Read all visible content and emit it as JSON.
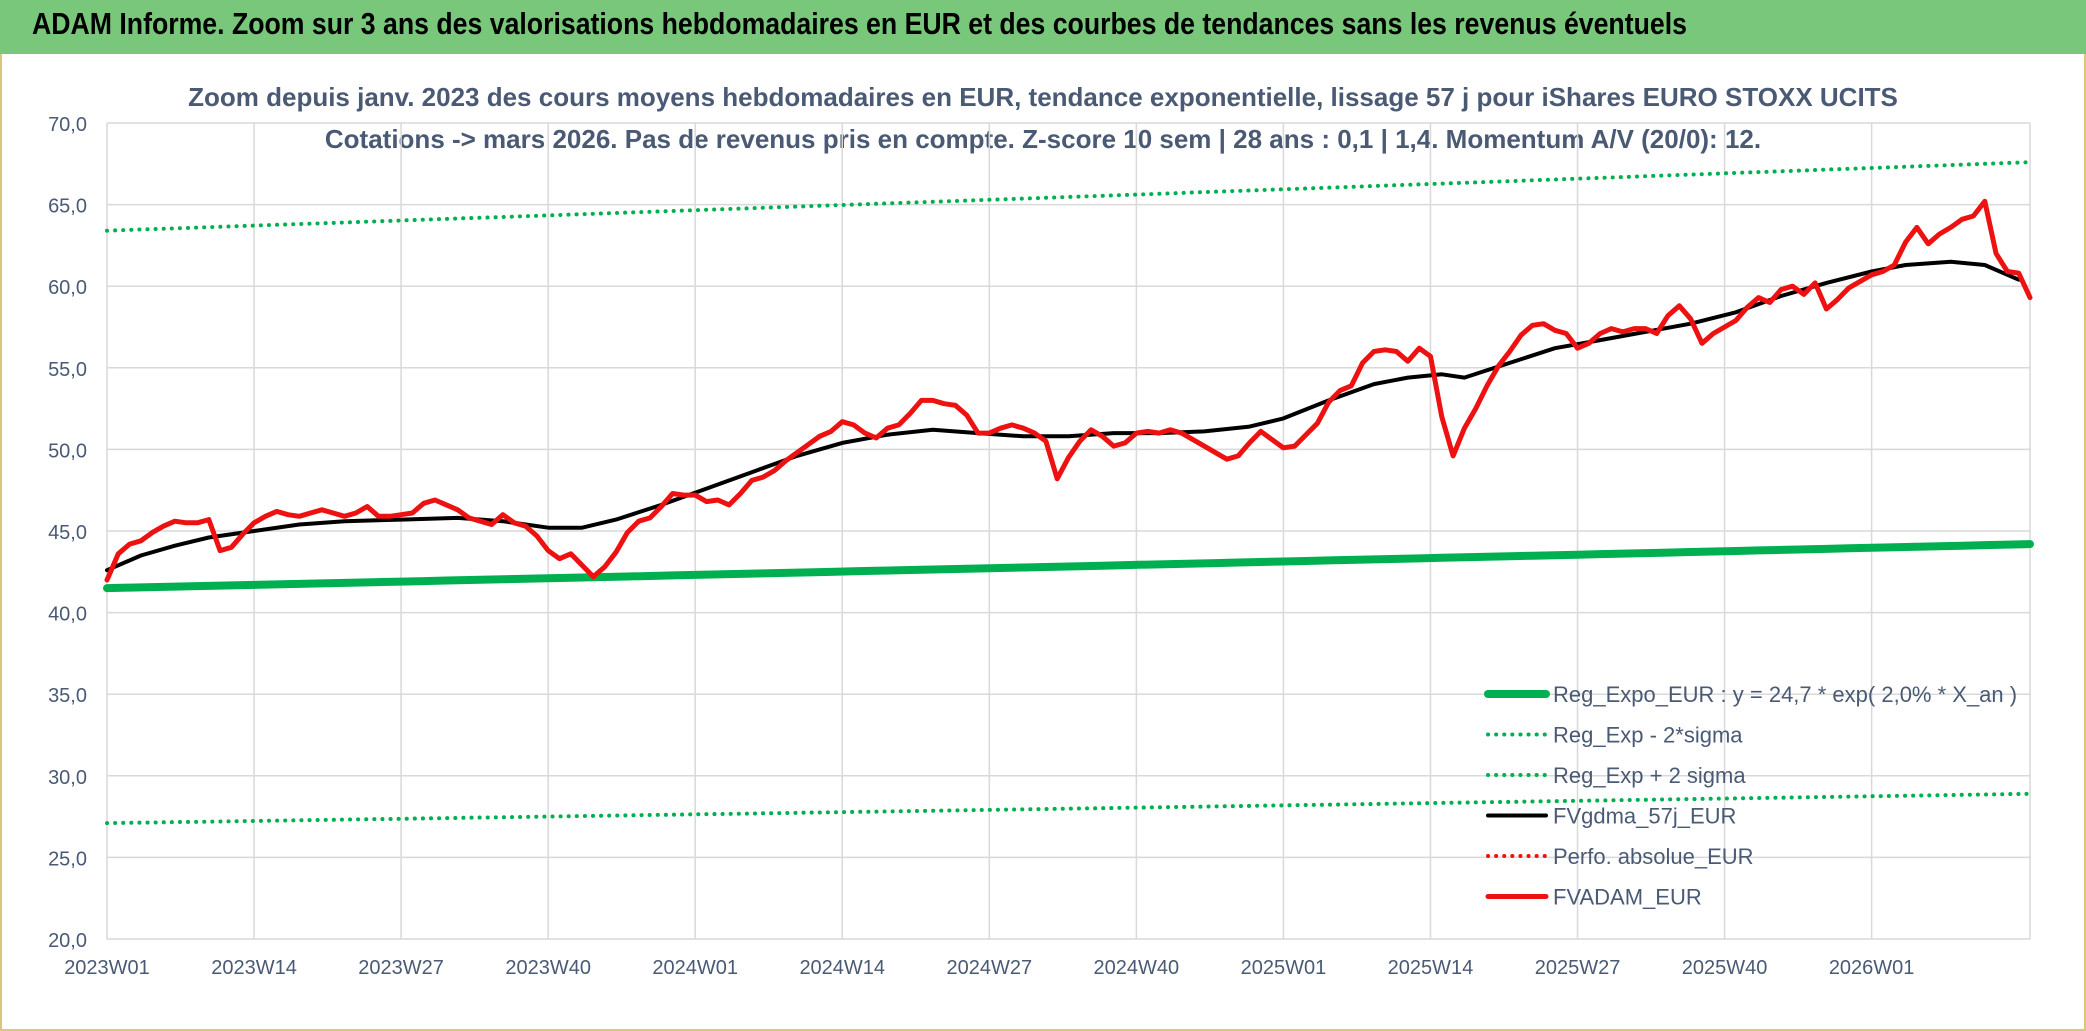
{
  "page": {
    "title": "ADAM Informe. Zoom sur 3 ans des valorisations hebdomadaires en EUR et des courbes de tendances sans les revenus éventuels"
  },
  "colors": {
    "header_bg": "#79c77a",
    "grid": "#d9d9d9",
    "axis_text": "#4a5a74",
    "green": "#00b050",
    "black": "#000000",
    "red": "#ee1111"
  },
  "chart_data": {
    "type": "line",
    "title": "Zoom depuis janv. 2023 des cours moyens hebdomadaires en EUR, tendance exponentielle, lissage 57 j pour iShares EURO STOXX UCITS",
    "subtitle": "Cotations -> mars 2026. Pas de revenus pris en compte. Z-score 10 sem | 28 ans : 0,1 | 1,4. Momentum A/V (20/0): 12.",
    "xlabel": "",
    "ylabel": "",
    "ylim": [
      20,
      70
    ],
    "y_ticks": [
      "20,0",
      "25,0",
      "30,0",
      "35,0",
      "40,0",
      "45,0",
      "50,0",
      "55,0",
      "60,0",
      "65,0",
      "70,0"
    ],
    "x_ticks": [
      {
        "label": "2023W01",
        "index": 0
      },
      {
        "label": "2023W14",
        "index": 13
      },
      {
        "label": "2023W27",
        "index": 26
      },
      {
        "label": "2023W40",
        "index": 39
      },
      {
        "label": "2024W01",
        "index": 52
      },
      {
        "label": "2024W14",
        "index": 65
      },
      {
        "label": "2024W27",
        "index": 78
      },
      {
        "label": "2024W40",
        "index": 91
      },
      {
        "label": "2025W01",
        "index": 104
      },
      {
        "label": "2025W14",
        "index": 117
      },
      {
        "label": "2025W27",
        "index": 130
      },
      {
        "label": "2025W40",
        "index": 143
      },
      {
        "label": "2026W01",
        "index": 156
      }
    ],
    "n_weeks": 170,
    "legend_position": "bottom-right",
    "series": [
      {
        "name": "Reg_Expo_EUR : y = 24,7 * exp( 2,0% *  X_an )",
        "style": "solid-thick",
        "color": "#00b050",
        "start": 41.5,
        "end": 44.2
      },
      {
        "name": "Reg_Exp - 2*sigma",
        "style": "dotted",
        "color": "#00b050",
        "start": 27.1,
        "end": 28.9
      },
      {
        "name": "Reg_Exp + 2 sigma",
        "style": "dotted",
        "color": "#00b050",
        "start": 63.4,
        "end": 67.6
      },
      {
        "name": "FVgdma_57j_EUR",
        "style": "solid",
        "color": "#000000",
        "points": [
          [
            0,
            42.6
          ],
          [
            3,
            43.5
          ],
          [
            6,
            44.1
          ],
          [
            9,
            44.6
          ],
          [
            13,
            45.0
          ],
          [
            17,
            45.4
          ],
          [
            21,
            45.6
          ],
          [
            26,
            45.7
          ],
          [
            31,
            45.8
          ],
          [
            35,
            45.6
          ],
          [
            39,
            45.2
          ],
          [
            42,
            45.2
          ],
          [
            45,
            45.7
          ],
          [
            49,
            46.6
          ],
          [
            53,
            47.6
          ],
          [
            57,
            48.6
          ],
          [
            61,
            49.6
          ],
          [
            65,
            50.4
          ],
          [
            69,
            50.9
          ],
          [
            73,
            51.2
          ],
          [
            77,
            51.0
          ],
          [
            81,
            50.8
          ],
          [
            85,
            50.8
          ],
          [
            89,
            51.0
          ],
          [
            93,
            51.0
          ],
          [
            97,
            51.1
          ],
          [
            101,
            51.4
          ],
          [
            104,
            51.9
          ],
          [
            108,
            53.0
          ],
          [
            112,
            54.0
          ],
          [
            115,
            54.4
          ],
          [
            118,
            54.6
          ],
          [
            120,
            54.4
          ],
          [
            124,
            55.3
          ],
          [
            128,
            56.2
          ],
          [
            132,
            56.7
          ],
          [
            136,
            57.2
          ],
          [
            140,
            57.7
          ],
          [
            144,
            58.4
          ],
          [
            148,
            59.4
          ],
          [
            152,
            60.2
          ],
          [
            156,
            60.9
          ],
          [
            159,
            61.3
          ],
          [
            163,
            61.5
          ],
          [
            166,
            61.3
          ],
          [
            169,
            60.4
          ]
        ]
      },
      {
        "name": "Perfo. absolue_EUR",
        "style": "dotted",
        "color": "#ee1111"
      },
      {
        "name": "FVADAM_EUR",
        "style": "solid-thick",
        "color": "#ee1111",
        "points": [
          [
            0,
            42.0
          ],
          [
            1,
            43.6
          ],
          [
            2,
            44.2
          ],
          [
            3,
            44.4
          ],
          [
            4,
            44.9
          ],
          [
            5,
            45.3
          ],
          [
            6,
            45.6
          ],
          [
            7,
            45.5
          ],
          [
            8,
            45.5
          ],
          [
            9,
            45.7
          ],
          [
            10,
            43.8
          ],
          [
            11,
            44.0
          ],
          [
            12,
            44.8
          ],
          [
            13,
            45.5
          ],
          [
            14,
            45.9
          ],
          [
            15,
            46.2
          ],
          [
            16,
            46.0
          ],
          [
            17,
            45.9
          ],
          [
            18,
            46.1
          ],
          [
            19,
            46.3
          ],
          [
            20,
            46.1
          ],
          [
            21,
            45.9
          ],
          [
            22,
            46.1
          ],
          [
            23,
            46.5
          ],
          [
            24,
            45.9
          ],
          [
            25,
            45.9
          ],
          [
            26,
            46.0
          ],
          [
            27,
            46.1
          ],
          [
            28,
            46.7
          ],
          [
            29,
            46.9
          ],
          [
            30,
            46.6
          ],
          [
            31,
            46.3
          ],
          [
            32,
            45.8
          ],
          [
            33,
            45.6
          ],
          [
            34,
            45.4
          ],
          [
            35,
            46.0
          ],
          [
            36,
            45.5
          ],
          [
            37,
            45.3
          ],
          [
            38,
            44.7
          ],
          [
            39,
            43.8
          ],
          [
            40,
            43.3
          ],
          [
            41,
            43.6
          ],
          [
            42,
            42.9
          ],
          [
            43,
            42.2
          ],
          [
            44,
            42.8
          ],
          [
            45,
            43.7
          ],
          [
            46,
            44.9
          ],
          [
            47,
            45.6
          ],
          [
            48,
            45.8
          ],
          [
            49,
            46.5
          ],
          [
            50,
            47.3
          ],
          [
            51,
            47.2
          ],
          [
            52,
            47.2
          ],
          [
            53,
            46.8
          ],
          [
            54,
            46.9
          ],
          [
            55,
            46.6
          ],
          [
            56,
            47.3
          ],
          [
            57,
            48.1
          ],
          [
            58,
            48.3
          ],
          [
            59,
            48.7
          ],
          [
            60,
            49.3
          ],
          [
            61,
            49.8
          ],
          [
            62,
            50.3
          ],
          [
            63,
            50.8
          ],
          [
            64,
            51.1
          ],
          [
            65,
            51.7
          ],
          [
            66,
            51.5
          ],
          [
            67,
            51.0
          ],
          [
            68,
            50.7
          ],
          [
            69,
            51.3
          ],
          [
            70,
            51.5
          ],
          [
            71,
            52.2
          ],
          [
            72,
            53.0
          ],
          [
            73,
            53.0
          ],
          [
            74,
            52.8
          ],
          [
            75,
            52.7
          ],
          [
            76,
            52.1
          ],
          [
            77,
            51.0
          ],
          [
            78,
            51.0
          ],
          [
            79,
            51.3
          ],
          [
            80,
            51.5
          ],
          [
            81,
            51.3
          ],
          [
            82,
            51.0
          ],
          [
            83,
            50.5
          ],
          [
            84,
            48.2
          ],
          [
            85,
            49.5
          ],
          [
            86,
            50.5
          ],
          [
            87,
            51.2
          ],
          [
            88,
            50.8
          ],
          [
            89,
            50.2
          ],
          [
            90,
            50.4
          ],
          [
            91,
            51.0
          ],
          [
            92,
            51.1
          ],
          [
            93,
            51.0
          ],
          [
            94,
            51.2
          ],
          [
            95,
            51.0
          ],
          [
            96,
            50.6
          ],
          [
            97,
            50.2
          ],
          [
            98,
            49.8
          ],
          [
            99,
            49.4
          ],
          [
            100,
            49.6
          ],
          [
            101,
            50.4
          ],
          [
            102,
            51.1
          ],
          [
            103,
            50.6
          ],
          [
            104,
            50.1
          ],
          [
            105,
            50.2
          ],
          [
            106,
            50.9
          ],
          [
            107,
            51.6
          ],
          [
            108,
            52.9
          ],
          [
            109,
            53.6
          ],
          [
            110,
            53.9
          ],
          [
            111,
            55.3
          ],
          [
            112,
            56.0
          ],
          [
            113,
            56.1
          ],
          [
            114,
            56.0
          ],
          [
            115,
            55.4
          ],
          [
            116,
            56.2
          ],
          [
            117,
            55.7
          ],
          [
            118,
            52.0
          ],
          [
            119,
            49.6
          ],
          [
            120,
            51.3
          ],
          [
            121,
            52.5
          ],
          [
            122,
            53.9
          ],
          [
            123,
            55.1
          ],
          [
            124,
            56.0
          ],
          [
            125,
            57.0
          ],
          [
            126,
            57.6
          ],
          [
            127,
            57.7
          ],
          [
            128,
            57.3
          ],
          [
            129,
            57.1
          ],
          [
            130,
            56.2
          ],
          [
            131,
            56.5
          ],
          [
            132,
            57.1
          ],
          [
            133,
            57.4
          ],
          [
            134,
            57.2
          ],
          [
            135,
            57.4
          ],
          [
            136,
            57.4
          ],
          [
            137,
            57.1
          ],
          [
            138,
            58.2
          ],
          [
            139,
            58.8
          ],
          [
            140,
            58.0
          ],
          [
            141,
            56.5
          ],
          [
            142,
            57.1
          ],
          [
            143,
            57.5
          ],
          [
            144,
            57.9
          ],
          [
            145,
            58.7
          ],
          [
            146,
            59.3
          ],
          [
            147,
            59.0
          ],
          [
            148,
            59.8
          ],
          [
            149,
            60.0
          ],
          [
            150,
            59.5
          ],
          [
            151,
            60.2
          ],
          [
            152,
            58.6
          ],
          [
            153,
            59.2
          ],
          [
            154,
            59.9
          ],
          [
            155,
            60.3
          ],
          [
            156,
            60.7
          ],
          [
            157,
            60.9
          ],
          [
            158,
            61.3
          ],
          [
            159,
            62.7
          ],
          [
            160,
            63.6
          ],
          [
            161,
            62.6
          ],
          [
            162,
            63.2
          ],
          [
            163,
            63.6
          ],
          [
            164,
            64.1
          ],
          [
            165,
            64.3
          ],
          [
            166,
            65.2
          ],
          [
            167,
            62.0
          ],
          [
            168,
            60.9
          ],
          [
            169,
            60.8
          ],
          [
            170,
            59.3
          ]
        ]
      }
    ]
  }
}
